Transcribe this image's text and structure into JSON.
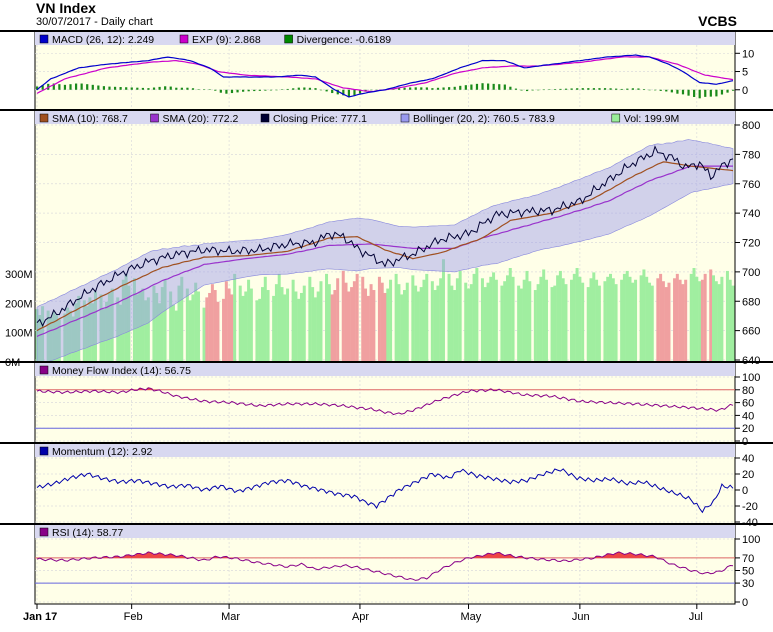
{
  "header": {
    "title": "VN Index",
    "subtitle": "30/07/2017 - Daily chart",
    "brand": "VCBS"
  },
  "chart_data": [
    {
      "type": "line",
      "panel": "macd",
      "legend": [
        {
          "label": "MACD (26, 12): 2.249",
          "color": "#0000cc"
        },
        {
          "label": "EXP (9): 2.868",
          "color": "#cc00cc"
        },
        {
          "label": "Divergence: -0.6189",
          "color": "#008800"
        }
      ],
      "ylim": [
        -5,
        12
      ],
      "yticks": [
        "10",
        "5",
        "0"
      ],
      "macd_anchors": [
        [
          0,
          0
        ],
        [
          5,
          3
        ],
        [
          15,
          6
        ],
        [
          25,
          7
        ],
        [
          40,
          8
        ],
        [
          47,
          9
        ],
        [
          55,
          8
        ],
        [
          62,
          6
        ],
        [
          67,
          3.5
        ],
        [
          75,
          3.5
        ],
        [
          85,
          3.5
        ],
        [
          95,
          4
        ],
        [
          100,
          3.5
        ],
        [
          107,
          0
        ],
        [
          112,
          -2
        ],
        [
          117,
          -1
        ],
        [
          125,
          0
        ],
        [
          135,
          2
        ],
        [
          142,
          3
        ],
        [
          152,
          6
        ],
        [
          160,
          8
        ],
        [
          168,
          8
        ],
        [
          175,
          6
        ],
        [
          185,
          7
        ],
        [
          195,
          8
        ],
        [
          205,
          9
        ],
        [
          215,
          9.5
        ],
        [
          220,
          9
        ],
        [
          227,
          7
        ],
        [
          232,
          5
        ],
        [
          238,
          2
        ],
        [
          244,
          1.5
        ],
        [
          250,
          2.5
        ]
      ],
      "signal_anchors": [
        [
          0,
          -1
        ],
        [
          10,
          3
        ],
        [
          25,
          6
        ],
        [
          40,
          7.5
        ],
        [
          50,
          8
        ],
        [
          58,
          7
        ],
        [
          65,
          5
        ],
        [
          75,
          4
        ],
        [
          90,
          3.5
        ],
        [
          100,
          3
        ],
        [
          110,
          0.5
        ],
        [
          120,
          -0.5
        ],
        [
          130,
          0.5
        ],
        [
          140,
          2
        ],
        [
          150,
          4.5
        ],
        [
          160,
          6
        ],
        [
          170,
          6.5
        ],
        [
          180,
          6.5
        ],
        [
          195,
          7.5
        ],
        [
          210,
          9
        ],
        [
          220,
          9
        ],
        [
          230,
          7
        ],
        [
          240,
          4
        ],
        [
          250,
          2.8
        ]
      ],
      "divergence_description": "MACD minus EXP bars"
    },
    {
      "type": "line",
      "panel": "price",
      "legend": [
        {
          "label": "SMA (10): 768.7",
          "color": "#a05020"
        },
        {
          "label": "SMA (20): 772.2",
          "color": "#9933cc"
        },
        {
          "label": "Closing Price: 777.1",
          "color": "#000033"
        },
        {
          "label": "Bollinger (20, 2): 760.5 - 783.9",
          "color": "#9999ee"
        },
        {
          "label": "Vol: 199.9M",
          "color": "#99ee99"
        }
      ],
      "ylim": [
        640,
        800
      ],
      "yticks": [
        "800",
        "780",
        "760",
        "740",
        "720",
        "700",
        "680",
        "660",
        "640"
      ],
      "volume_ylim": [
        0,
        800
      ],
      "volume_ticks": [
        "300M",
        "200M",
        "100M",
        "0M"
      ],
      "close_anchors": [
        [
          0,
          664
        ],
        [
          8,
          673
        ],
        [
          18,
          686
        ],
        [
          30,
          699
        ],
        [
          40,
          707
        ],
        [
          50,
          712
        ],
        [
          60,
          715
        ],
        [
          70,
          714
        ],
        [
          80,
          715
        ],
        [
          90,
          719
        ],
        [
          100,
          720
        ],
        [
          105,
          726
        ],
        [
          110,
          724
        ],
        [
          115,
          716
        ],
        [
          125,
          705
        ],
        [
          135,
          712
        ],
        [
          145,
          722
        ],
        [
          155,
          726
        ],
        [
          165,
          739
        ],
        [
          175,
          741
        ],
        [
          185,
          742
        ],
        [
          195,
          748
        ],
        [
          205,
          762
        ],
        [
          215,
          775
        ],
        [
          222,
          782
        ],
        [
          228,
          778
        ],
        [
          233,
          771
        ],
        [
          238,
          774
        ],
        [
          242,
          765
        ],
        [
          246,
          772
        ],
        [
          250,
          777
        ]
      ],
      "sma10_anchors": [
        [
          0,
          660
        ],
        [
          15,
          675
        ],
        [
          30,
          690
        ],
        [
          45,
          703
        ],
        [
          60,
          710
        ],
        [
          75,
          711
        ],
        [
          90,
          714
        ],
        [
          105,
          723
        ],
        [
          115,
          724
        ],
        [
          125,
          715
        ],
        [
          135,
          709
        ],
        [
          145,
          713
        ],
        [
          160,
          723
        ],
        [
          170,
          735
        ],
        [
          185,
          740
        ],
        [
          200,
          750
        ],
        [
          215,
          766
        ],
        [
          225,
          775
        ],
        [
          235,
          772
        ],
        [
          250,
          769
        ]
      ],
      "sma20_anchors": [
        [
          0,
          656
        ],
        [
          15,
          668
        ],
        [
          30,
          680
        ],
        [
          45,
          694
        ],
        [
          60,
          705
        ],
        [
          75,
          709
        ],
        [
          90,
          712
        ],
        [
          105,
          718
        ],
        [
          120,
          719
        ],
        [
          135,
          716
        ],
        [
          150,
          716
        ],
        [
          160,
          723
        ],
        [
          175,
          731
        ],
        [
          190,
          739
        ],
        [
          205,
          748
        ],
        [
          220,
          762
        ],
        [
          235,
          772
        ],
        [
          250,
          772
        ]
      ],
      "bollinger_width_anchors": [
        [
          0,
          20
        ],
        [
          20,
          22
        ],
        [
          40,
          24
        ],
        [
          60,
          14
        ],
        [
          80,
          12
        ],
        [
          100,
          15
        ],
        [
          115,
          18
        ],
        [
          130,
          14
        ],
        [
          150,
          16
        ],
        [
          165,
          20
        ],
        [
          180,
          19
        ],
        [
          200,
          22
        ],
        [
          220,
          24
        ],
        [
          235,
          18
        ],
        [
          250,
          12
        ]
      ],
      "volume_values": [
        180,
        160,
        190,
        175,
        150,
        170,
        160,
        145,
        165,
        185,
        175,
        155,
        200,
        225,
        210,
        190,
        220,
        200,
        240,
        230,
        180,
        205,
        235,
        250,
        220,
        195,
        280,
        300,
        260,
        285,
        230,
        240,
        250,
        210,
        220,
        260,
        235,
        200,
        255,
        280,
        240,
        195,
        175,
        260,
        290,
        250,
        210,
        230,
        270,
        240,
        185,
        220,
        235,
        265,
        245,
        205,
        215,
        275,
        250,
        230,
        300,
        260,
        225,
        240,
        280,
        250,
        210,
        215,
        255,
        290,
        245,
        225,
        265,
        300,
        255,
        230,
        250,
        280,
        240,
        215,
        235,
        260,
        290,
        255,
        220,
        240,
        275,
        300,
        265,
        230,
        245,
        285,
        310,
        270,
        240,
        255,
        275,
        300,
        290,
        250,
        225,
        265,
        245,
        290,
        270,
        235,
        250,
        280,
        300,
        265,
        230,
        245,
        270,
        295,
        260,
        240,
        255,
        280,
        300,
        275,
        245,
        260,
        285,
        350,
        300,
        260,
        245,
        285,
        310,
        270,
        250,
        265,
        300,
        320,
        285,
        255,
        270,
        290,
        305,
        280,
        260,
        275,
        295,
        320,
        290,
        260,
        250,
        280,
        310,
        275,
        245,
        265,
        290,
        315,
        280,
        255,
        260,
        295,
        310,
        285,
        265,
        280,
        300,
        320,
        290,
        270,
        255,
        285,
        305,
        280,
        260,
        275,
        290,
        300,
        285,
        265,
        280,
        300,
        310,
        290,
        270,
        280,
        295,
        315,
        290,
        270,
        260,
        285,
        300,
        275,
        255,
        270,
        285,
        300,
        280,
        265,
        280,
        300,
        320,
        290,
        275,
        280,
        300,
        315,
        295,
        275,
        265,
        290,
        310,
        280,
        260
      ],
      "x_axis_labels": [
        {
          "label": "Jan 17",
          "bold": true,
          "i": 0
        },
        {
          "label": "Feb",
          "i": 20
        },
        {
          "label": "Mar",
          "i": 41
        },
        {
          "label": "Apr",
          "i": 69
        },
        {
          "label": "May",
          "i": 92
        },
        {
          "label": "Jun",
          "i": 116
        },
        {
          "label": "Jul",
          "i": 141
        }
      ]
    },
    {
      "type": "line",
      "panel": "mfi",
      "legend": [
        {
          "label": "Money Flow Index (14): 56.75",
          "color": "#880088"
        }
      ],
      "ylim": [
        0,
        100
      ],
      "yticks": [
        "100",
        "80",
        "60",
        "40",
        "20",
        "0"
      ],
      "upper_level": 80,
      "lower_level": 20,
      "anchors": [
        [
          0,
          78
        ],
        [
          10,
          76
        ],
        [
          20,
          78
        ],
        [
          30,
          76
        ],
        [
          35,
          80
        ],
        [
          40,
          82
        ],
        [
          45,
          77
        ],
        [
          50,
          70
        ],
        [
          60,
          62
        ],
        [
          70,
          60
        ],
        [
          80,
          55
        ],
        [
          90,
          58
        ],
        [
          100,
          58
        ],
        [
          110,
          55
        ],
        [
          115,
          52
        ],
        [
          120,
          50
        ],
        [
          125,
          45
        ],
        [
          130,
          42
        ],
        [
          135,
          48
        ],
        [
          145,
          65
        ],
        [
          155,
          78
        ],
        [
          165,
          80
        ],
        [
          175,
          72
        ],
        [
          185,
          70
        ],
        [
          195,
          62
        ],
        [
          205,
          60
        ],
        [
          215,
          58
        ],
        [
          225,
          55
        ],
        [
          235,
          52
        ],
        [
          245,
          48
        ],
        [
          250,
          57
        ]
      ]
    },
    {
      "type": "line",
      "panel": "momentum",
      "legend": [
        {
          "label": "Momentum (12): 2.92",
          "color": "#0000aa"
        }
      ],
      "ylim": [
        -40,
        40
      ],
      "yticks": [
        "40",
        "20",
        "0",
        "-20",
        "-40"
      ],
      "anchors": [
        [
          0,
          3
        ],
        [
          6,
          8
        ],
        [
          12,
          15
        ],
        [
          18,
          20
        ],
        [
          24,
          14
        ],
        [
          30,
          10
        ],
        [
          36,
          12
        ],
        [
          42,
          8
        ],
        [
          48,
          4
        ],
        [
          54,
          6
        ],
        [
          60,
          0
        ],
        [
          66,
          5
        ],
        [
          72,
          -2
        ],
        [
          78,
          4
        ],
        [
          84,
          10
        ],
        [
          90,
          12
        ],
        [
          96,
          5
        ],
        [
          102,
          0
        ],
        [
          108,
          -5
        ],
        [
          114,
          -8
        ],
        [
          118,
          -15
        ],
        [
          122,
          -20
        ],
        [
          126,
          -10
        ],
        [
          130,
          0
        ],
        [
          136,
          10
        ],
        [
          142,
          20
        ],
        [
          148,
          15
        ],
        [
          152,
          25
        ],
        [
          158,
          18
        ],
        [
          164,
          14
        ],
        [
          170,
          10
        ],
        [
          176,
          12
        ],
        [
          182,
          20
        ],
        [
          188,
          26
        ],
        [
          194,
          15
        ],
        [
          200,
          12
        ],
        [
          206,
          14
        ],
        [
          212,
          8
        ],
        [
          218,
          10
        ],
        [
          224,
          2
        ],
        [
          230,
          -5
        ],
        [
          235,
          -12
        ],
        [
          239,
          -26
        ],
        [
          243,
          -15
        ],
        [
          246,
          5
        ],
        [
          250,
          3
        ]
      ]
    },
    {
      "type": "line",
      "panel": "rsi",
      "legend": [
        {
          "label": "RSI (14): 58.77",
          "color": "#880088"
        }
      ],
      "ylim": [
        0,
        100
      ],
      "yticks": [
        "100",
        "70",
        "50",
        "30",
        "0"
      ],
      "upper_level": 70,
      "lower_level": 30,
      "anchors": [
        [
          0,
          68
        ],
        [
          10,
          66
        ],
        [
          20,
          70
        ],
        [
          30,
          72
        ],
        [
          40,
          78
        ],
        [
          50,
          74
        ],
        [
          60,
          66
        ],
        [
          65,
          72
        ],
        [
          70,
          70
        ],
        [
          80,
          62
        ],
        [
          90,
          56
        ],
        [
          95,
          60
        ],
        [
          100,
          52
        ],
        [
          110,
          58
        ],
        [
          115,
          55
        ],
        [
          120,
          50
        ],
        [
          125,
          45
        ],
        [
          130,
          40
        ],
        [
          135,
          35
        ],
        [
          140,
          38
        ],
        [
          145,
          52
        ],
        [
          150,
          62
        ],
        [
          155,
          70
        ],
        [
          165,
          78
        ],
        [
          172,
          72
        ],
        [
          180,
          68
        ],
        [
          190,
          65
        ],
        [
          200,
          70
        ],
        [
          208,
          78
        ],
        [
          215,
          76
        ],
        [
          222,
          72
        ],
        [
          228,
          60
        ],
        [
          235,
          50
        ],
        [
          240,
          45
        ],
        [
          245,
          48
        ],
        [
          250,
          59
        ]
      ]
    }
  ]
}
